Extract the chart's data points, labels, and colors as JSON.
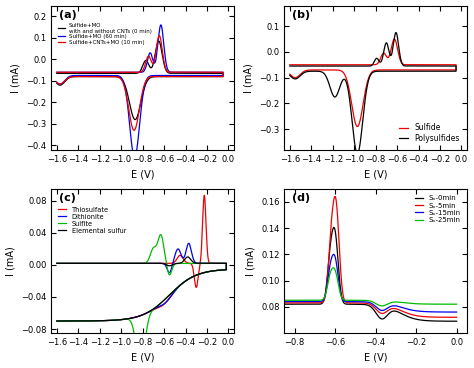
{
  "fig_bg": "#ffffff",
  "panel_bg": "#ffffff",
  "panels": {
    "a": {
      "label": "(a)",
      "xlabel": "E (V)",
      "ylabel": "I (mA)",
      "xlim": [
        -1.65,
        0.05
      ],
      "ylim": [
        -0.42,
        0.25
      ],
      "xticks": [
        -1.6,
        -1.4,
        -1.2,
        -1.0,
        -0.8,
        -0.6,
        -0.4,
        -0.2,
        0.0
      ],
      "yticks": [
        -0.4,
        -0.3,
        -0.2,
        -0.1,
        0.0,
        0.1,
        0.2
      ],
      "legend": [
        "Sulfide+MO\nwith and without CNTs (0 min)",
        "Sulfide+MO (60 min)",
        "Sulfide+CNTs+MO (10 min)"
      ],
      "colors": [
        "#000000",
        "#0000ee",
        "#ee0000"
      ]
    },
    "b": {
      "label": "(b)",
      "xlabel": "E (V)",
      "ylabel": "I (mA)",
      "xlim": [
        -1.65,
        0.05
      ],
      "ylim": [
        -0.38,
        0.18
      ],
      "xticks": [
        -1.6,
        -1.4,
        -1.2,
        -1.0,
        -0.8,
        -0.6,
        -0.4,
        -0.2,
        0.0
      ],
      "yticks": [
        -0.3,
        -0.2,
        -0.1,
        0.0,
        0.1
      ],
      "legend": [
        "Sulfide",
        "Polysulfides"
      ],
      "colors": [
        "#ee0000",
        "#000000"
      ]
    },
    "c": {
      "label": "(c)",
      "xlabel": "E (V)",
      "ylabel": "I (mA)",
      "xlim": [
        -1.65,
        0.05
      ],
      "ylim": [
        -0.085,
        0.095
      ],
      "xticks": [
        -1.6,
        -1.4,
        -1.2,
        -1.0,
        -0.8,
        -0.6,
        -0.4,
        -0.2,
        0.0
      ],
      "yticks": [
        -0.08,
        -0.04,
        0.0,
        0.04,
        0.08
      ],
      "legend": [
        "Thiosulfate",
        "Dithionite",
        "Sulfite",
        "Elemental sulfur"
      ],
      "colors": [
        "#ee0000",
        "#0000ee",
        "#00bb00",
        "#000000"
      ]
    },
    "d": {
      "label": "(d)",
      "xlabel": "E (V)",
      "ylabel": "I (mA)",
      "xlim": [
        -0.85,
        0.05
      ],
      "ylim": [
        0.06,
        0.17
      ],
      "xticks": [
        -0.8,
        -0.6,
        -0.4,
        -0.2,
        0.0
      ],
      "yticks": [
        0.08,
        0.1,
        0.12,
        0.14,
        0.16
      ],
      "legend": [
        "Sₓ-0min",
        "Sₓ-5min",
        "Sₓ-15min",
        "Sₓ-25min"
      ],
      "colors": [
        "#000000",
        "#ee0000",
        "#0000ee",
        "#00bb00"
      ]
    }
  }
}
